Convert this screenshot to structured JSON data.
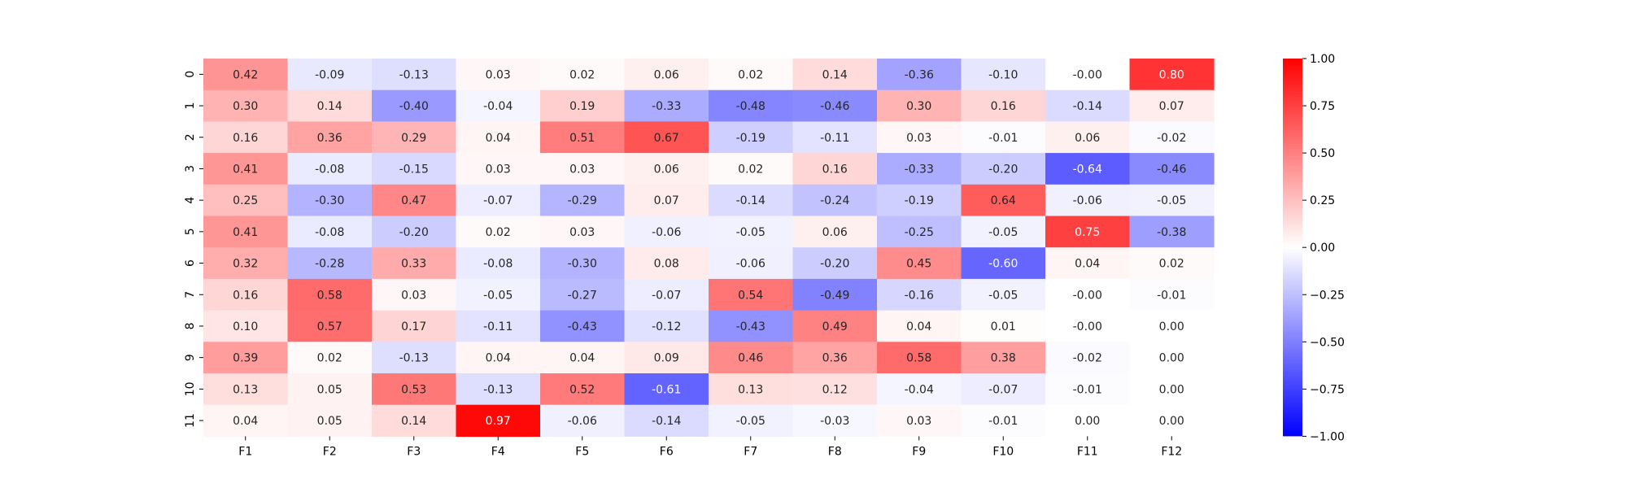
{
  "chart_data": {
    "type": "heatmap",
    "title": "",
    "xlabel": "",
    "ylabel": "",
    "x_labels": [
      "F1",
      "F2",
      "F3",
      "F4",
      "F5",
      "F6",
      "F7",
      "F8",
      "F9",
      "F10",
      "F11",
      "F12"
    ],
    "y_labels": [
      "0",
      "1",
      "2",
      "3",
      "4",
      "5",
      "6",
      "7",
      "8",
      "9",
      "10",
      "11"
    ],
    "values": [
      [
        0.42,
        -0.09,
        -0.13,
        0.03,
        0.02,
        0.06,
        0.02,
        0.14,
        -0.36,
        -0.1,
        -0.0,
        0.8
      ],
      [
        0.3,
        0.14,
        -0.4,
        -0.04,
        0.19,
        -0.33,
        -0.48,
        -0.46,
        0.3,
        0.16,
        -0.14,
        0.07
      ],
      [
        0.16,
        0.36,
        0.29,
        0.04,
        0.51,
        0.67,
        -0.19,
        -0.11,
        0.03,
        -0.01,
        0.06,
        -0.02
      ],
      [
        0.41,
        -0.08,
        -0.15,
        0.03,
        0.03,
        0.06,
        0.02,
        0.16,
        -0.33,
        -0.2,
        -0.64,
        -0.46
      ],
      [
        0.25,
        -0.3,
        0.47,
        -0.07,
        -0.29,
        0.07,
        -0.14,
        -0.24,
        -0.19,
        0.64,
        -0.06,
        -0.05
      ],
      [
        0.41,
        -0.08,
        -0.2,
        0.02,
        0.03,
        -0.06,
        -0.05,
        0.06,
        -0.25,
        -0.05,
        0.75,
        -0.38
      ],
      [
        0.32,
        -0.28,
        0.33,
        -0.08,
        -0.3,
        0.08,
        -0.06,
        -0.2,
        0.45,
        -0.6,
        0.04,
        0.02
      ],
      [
        0.16,
        0.58,
        0.03,
        -0.05,
        -0.27,
        -0.07,
        0.54,
        -0.49,
        -0.16,
        -0.05,
        -0.0,
        -0.01
      ],
      [
        0.1,
        0.57,
        0.17,
        -0.11,
        -0.43,
        -0.12,
        -0.43,
        0.49,
        0.04,
        0.01,
        -0.0,
        0.0
      ],
      [
        0.39,
        0.02,
        -0.13,
        0.04,
        0.04,
        0.09,
        0.46,
        0.36,
        0.58,
        0.38,
        -0.02,
        0.0
      ],
      [
        0.13,
        0.05,
        0.53,
        -0.13,
        0.52,
        -0.61,
        0.13,
        0.12,
        -0.04,
        -0.07,
        -0.01,
        0.0
      ],
      [
        0.04,
        0.05,
        0.14,
        0.97,
        -0.06,
        -0.14,
        -0.05,
        -0.03,
        0.03,
        -0.01,
        0.0,
        0.0
      ]
    ],
    "colorbar": {
      "range": [
        -1.0,
        1.0
      ],
      "ticks": [
        -1.0,
        -0.75,
        -0.5,
        -0.25,
        0.0,
        0.25,
        0.5,
        0.75,
        1.0
      ],
      "tick_labels": [
        "−1.00",
        "−0.75",
        "−0.50",
        "−0.25",
        "0.00",
        "0.25",
        "0.50",
        "0.75",
        "1.00"
      ]
    },
    "colormap": "bwr",
    "colors": {
      "negative": "#0000ff",
      "zero": "#ffffff",
      "positive": "#ff0000"
    },
    "grid": false,
    "annotations": true,
    "annotation_format": "0.00"
  }
}
